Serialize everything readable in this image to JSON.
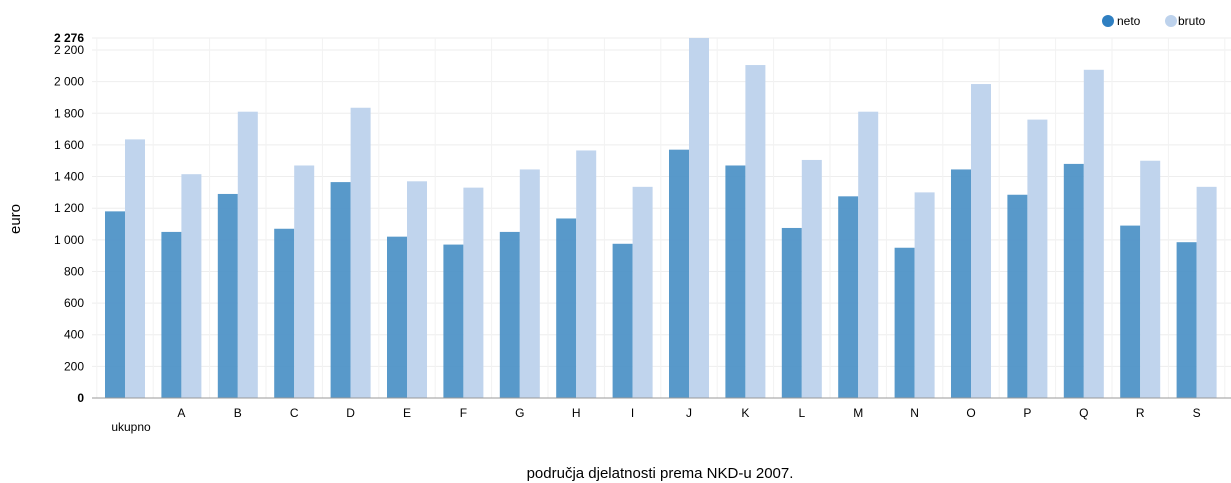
{
  "chart_data": {
    "type": "bar",
    "xlabel": "područja djelatnosti prema NKD-u 2007.",
    "ylabel": "euro",
    "ylim": [
      0,
      2276
    ],
    "y_ticks": [
      "0",
      "200",
      "400",
      "600",
      "800",
      "1 000",
      "1 200",
      "1 400",
      "1 600",
      "1 800",
      "2 000",
      "2 200",
      "2 276"
    ],
    "y_tick_values": [
      0,
      200,
      400,
      600,
      800,
      1000,
      1200,
      1400,
      1600,
      1800,
      2000,
      2200,
      2276
    ],
    "categories": [
      "ukupno",
      "A",
      "B",
      "C",
      "D",
      "E",
      "F",
      "G",
      "H",
      "I",
      "J",
      "K",
      "L",
      "M",
      "N",
      "O",
      "P",
      "Q",
      "R",
      "S"
    ],
    "series": [
      {
        "name": "neto",
        "color": "#4a90c6",
        "values": [
          1180,
          1050,
          1290,
          1070,
          1365,
          1020,
          970,
          1050,
          1135,
          975,
          1570,
          1470,
          1075,
          1275,
          950,
          1445,
          1285,
          1480,
          1090,
          985
        ]
      },
      {
        "name": "bruto",
        "color": "#bdd2ec",
        "values": [
          1635,
          1415,
          1810,
          1470,
          1835,
          1370,
          1330,
          1445,
          1565,
          1335,
          2276,
          2105,
          1505,
          1810,
          1300,
          1985,
          1760,
          2075,
          1500,
          1335
        ]
      }
    ],
    "grid": true,
    "legend_position": "top-right"
  }
}
